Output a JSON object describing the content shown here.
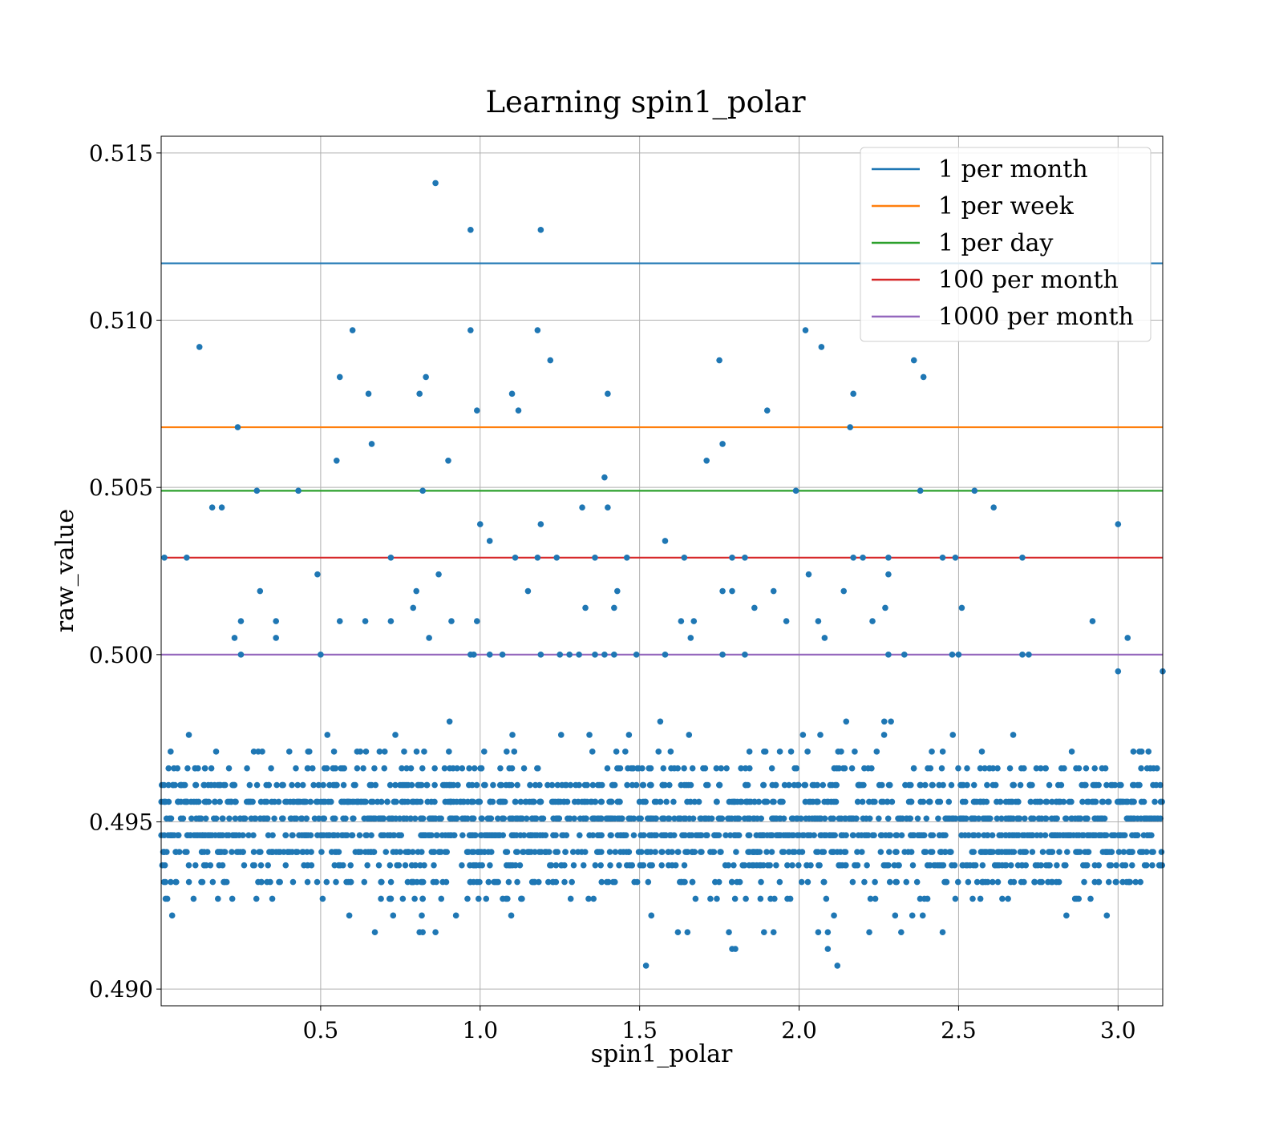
{
  "chart_data": {
    "type": "scatter",
    "title": "Learning spin1_polar",
    "xlabel": "spin1_polar",
    "ylabel": "raw_value",
    "xlim": [
      0.0,
      3.14
    ],
    "ylim": [
      0.4895,
      0.5155
    ],
    "xticks": [
      "0.5",
      "1.0",
      "1.5",
      "2.0",
      "2.5",
      "3.0"
    ],
    "yticks": [
      "0.490",
      "0.495",
      "0.500",
      "0.505",
      "0.510",
      "0.515"
    ],
    "grid": true,
    "legend_position": "top-right",
    "point_color": "#1f77b4",
    "reference_lines": [
      {
        "name": "1 per month",
        "y": 0.5117,
        "color": "#1f77b4"
      },
      {
        "name": "1 per week",
        "y": 0.5068,
        "color": "#ff7f0e"
      },
      {
        "name": "1 per day",
        "y": 0.5049,
        "color": "#2ca02c"
      },
      {
        "name": "100 per month",
        "y": 0.5029,
        "color": "#d62728"
      },
      {
        "name": "1000 per month",
        "y": 0.5,
        "color": "#9467bd"
      }
    ],
    "outliers": [
      [
        0.86,
        0.5141
      ],
      [
        0.97,
        0.5127
      ],
      [
        1.19,
        0.5127
      ],
      [
        0.12,
        0.5092
      ],
      [
        0.6,
        0.5097
      ],
      [
        0.97,
        0.5097
      ],
      [
        1.18,
        0.5097
      ],
      [
        2.02,
        0.5097
      ],
      [
        2.07,
        0.5092
      ],
      [
        0.56,
        0.5083
      ],
      [
        0.83,
        0.5083
      ],
      [
        2.39,
        0.5083
      ],
      [
        1.22,
        0.5088
      ],
      [
        1.75,
        0.5088
      ],
      [
        2.36,
        0.5088
      ],
      [
        0.65,
        0.5078
      ],
      [
        0.81,
        0.5078
      ],
      [
        1.1,
        0.5078
      ],
      [
        1.4,
        0.5078
      ],
      [
        2.17,
        0.5078
      ],
      [
        0.99,
        0.5073
      ],
      [
        1.12,
        0.5073
      ],
      [
        1.9,
        0.5073
      ],
      [
        0.24,
        0.5068
      ],
      [
        2.16,
        0.5068
      ],
      [
        0.66,
        0.5063
      ],
      [
        1.76,
        0.5063
      ],
      [
        0.55,
        0.5058
      ],
      [
        0.9,
        0.5058
      ],
      [
        1.71,
        0.5058
      ],
      [
        1.39,
        0.5053
      ],
      [
        0.16,
        0.5044
      ],
      [
        0.19,
        0.5044
      ],
      [
        1.32,
        0.5044
      ],
      [
        1.4,
        0.5044
      ],
      [
        2.61,
        0.5044
      ],
      [
        0.3,
        0.5049
      ],
      [
        0.43,
        0.5049
      ],
      [
        0.82,
        0.5049
      ],
      [
        1.99,
        0.5049
      ],
      [
        2.38,
        0.5049
      ],
      [
        2.55,
        0.5049
      ],
      [
        1.0,
        0.5039
      ],
      [
        1.19,
        0.5039
      ],
      [
        3.0,
        0.5039
      ],
      [
        1.03,
        0.5034
      ],
      [
        1.58,
        0.5034
      ],
      [
        0.01,
        0.5029
      ],
      [
        0.08,
        0.5029
      ],
      [
        0.72,
        0.5029
      ],
      [
        1.11,
        0.5029
      ],
      [
        1.18,
        0.5029
      ],
      [
        1.24,
        0.5029
      ],
      [
        1.36,
        0.5029
      ],
      [
        1.46,
        0.5029
      ],
      [
        1.64,
        0.5029
      ],
      [
        1.79,
        0.5029
      ],
      [
        1.83,
        0.5029
      ],
      [
        2.17,
        0.5029
      ],
      [
        2.2,
        0.5029
      ],
      [
        2.28,
        0.5029
      ],
      [
        2.45,
        0.5029
      ],
      [
        2.49,
        0.5029
      ],
      [
        2.7,
        0.5029
      ],
      [
        0.49,
        0.5024
      ],
      [
        0.87,
        0.5024
      ],
      [
        2.03,
        0.5024
      ],
      [
        2.28,
        0.5024
      ],
      [
        0.31,
        0.5019
      ],
      [
        0.8,
        0.5019
      ],
      [
        1.15,
        0.5019
      ],
      [
        1.43,
        0.5019
      ],
      [
        1.76,
        0.5019
      ],
      [
        1.79,
        0.5019
      ],
      [
        1.92,
        0.5019
      ],
      [
        2.14,
        0.5019
      ],
      [
        0.79,
        0.5014
      ],
      [
        1.33,
        0.5014
      ],
      [
        1.42,
        0.5014
      ],
      [
        1.86,
        0.5014
      ],
      [
        2.27,
        0.5014
      ],
      [
        2.51,
        0.5014
      ],
      [
        0.25,
        0.501
      ],
      [
        0.36,
        0.501
      ],
      [
        0.56,
        0.501
      ],
      [
        0.64,
        0.501
      ],
      [
        0.72,
        0.501
      ],
      [
        0.91,
        0.501
      ],
      [
        0.99,
        0.501
      ],
      [
        1.63,
        0.501
      ],
      [
        1.67,
        0.501
      ],
      [
        1.96,
        0.501
      ],
      [
        2.06,
        0.501
      ],
      [
        2.23,
        0.501
      ],
      [
        2.92,
        0.501
      ],
      [
        0.23,
        0.5005
      ],
      [
        0.36,
        0.5005
      ],
      [
        0.84,
        0.5005
      ],
      [
        1.66,
        0.5005
      ],
      [
        2.08,
        0.5005
      ],
      [
        3.03,
        0.5005
      ],
      [
        0.25,
        0.5
      ],
      [
        0.5,
        0.5
      ],
      [
        0.97,
        0.5
      ],
      [
        0.98,
        0.5
      ],
      [
        1.03,
        0.5
      ],
      [
        1.07,
        0.5
      ],
      [
        1.19,
        0.5
      ],
      [
        1.25,
        0.5
      ],
      [
        1.28,
        0.5
      ],
      [
        1.31,
        0.5
      ],
      [
        1.36,
        0.5
      ],
      [
        1.39,
        0.5
      ],
      [
        1.42,
        0.5
      ],
      [
        1.49,
        0.5
      ],
      [
        1.58,
        0.5
      ],
      [
        1.76,
        0.5
      ],
      [
        1.83,
        0.5
      ],
      [
        2.28,
        0.5
      ],
      [
        2.33,
        0.5
      ],
      [
        2.48,
        0.5
      ],
      [
        2.5,
        0.5
      ],
      [
        2.7,
        0.5
      ],
      [
        2.72,
        0.5
      ],
      [
        1.52,
        0.4907
      ],
      [
        2.12,
        0.4907
      ],
      [
        2.09,
        0.4912
      ],
      [
        1.79,
        0.4912
      ],
      [
        1.8,
        0.4912
      ],
      [
        0.67,
        0.4917
      ],
      [
        0.81,
        0.4917
      ],
      [
        0.82,
        0.4917
      ],
      [
        0.86,
        0.4917
      ],
      [
        1.62,
        0.4917
      ],
      [
        1.65,
        0.4917
      ],
      [
        1.78,
        0.4917
      ],
      [
        1.89,
        0.4917
      ],
      [
        1.92,
        0.4917
      ],
      [
        2.06,
        0.4917
      ],
      [
        2.09,
        0.4917
      ],
      [
        2.22,
        0.4917
      ],
      [
        2.32,
        0.4917
      ],
      [
        2.45,
        0.4917
      ],
      [
        3.14,
        0.4995
      ],
      [
        3.0,
        0.4995
      ]
    ],
    "cluster": {
      "x_range": [
        0.0,
        3.14
      ],
      "y_levels": [
        0.4922,
        0.4927,
        0.4932,
        0.4937,
        0.4941,
        0.4946,
        0.4951,
        0.4956,
        0.4961,
        0.4966,
        0.4971,
        0.4976,
        0.498,
        0.4985,
        0.499,
        0.4995
      ]
    }
  },
  "legend": {
    "entries": [
      "1 per month",
      "1 per week",
      "1 per day",
      "100 per month",
      "1000 per month"
    ]
  }
}
